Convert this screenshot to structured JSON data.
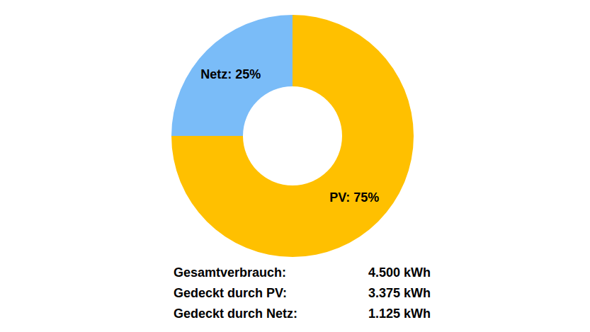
{
  "chart_data": {
    "type": "pie",
    "categories": [
      "PV",
      "Netz"
    ],
    "values": [
      75,
      25
    ],
    "value_labels": [
      "PV: 75%",
      "Netz: 25%"
    ],
    "colors": [
      "#ffc000",
      "#7abcf8"
    ],
    "data_labels": true,
    "summary": [
      {
        "label": "Gesamtverbrauch:",
        "value": "4.500 kWh"
      },
      {
        "label": "Gedeckt durch PV:",
        "value": "3.375 kWh"
      },
      {
        "label": "Gedeckt durch Netz:",
        "value": "1.125 kWh"
      }
    ]
  }
}
